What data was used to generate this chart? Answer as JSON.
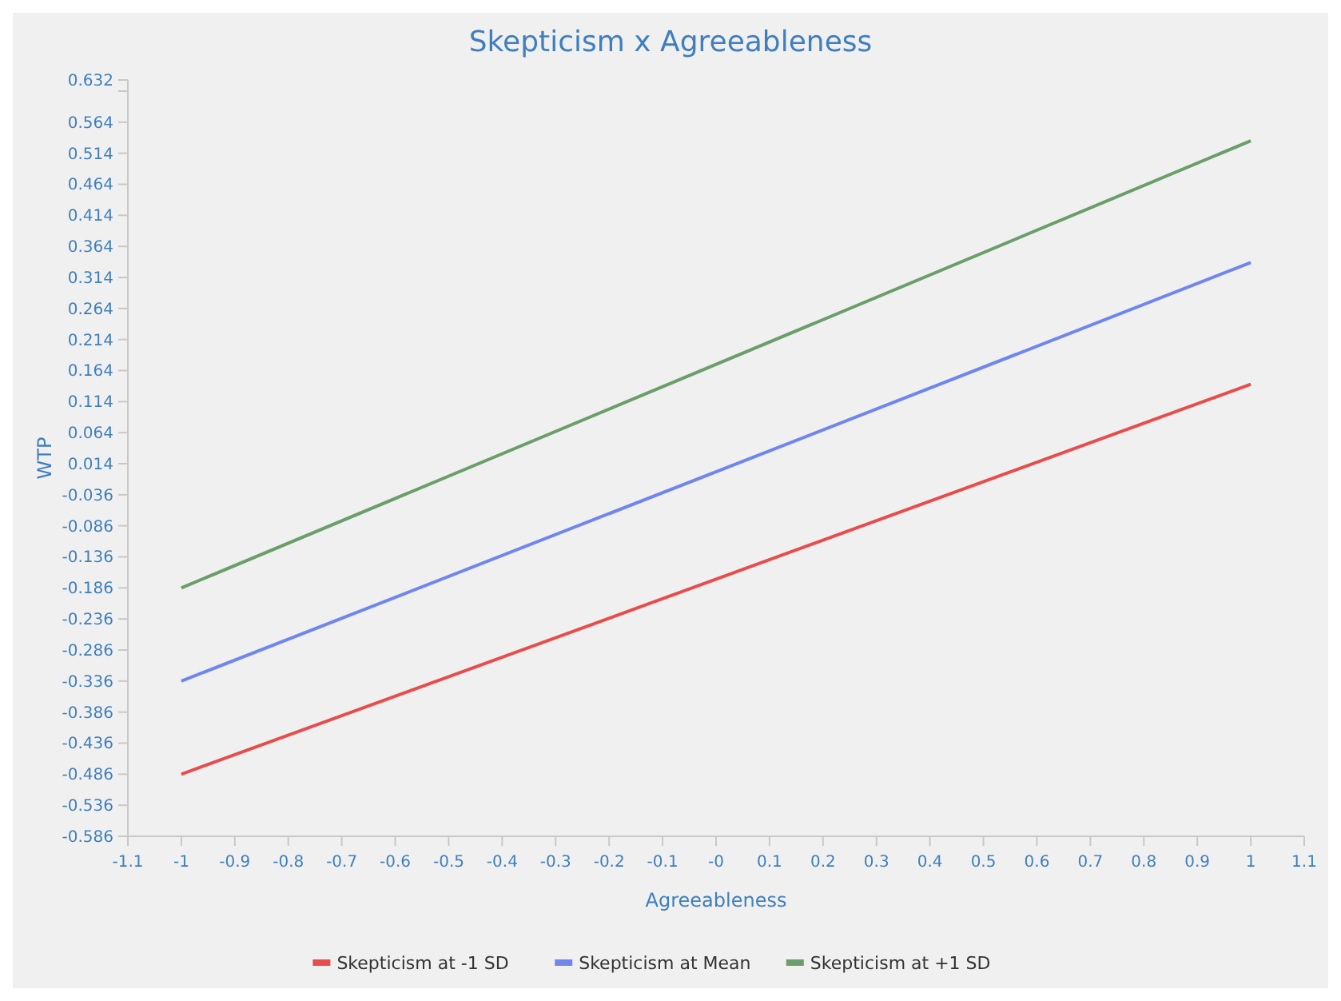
{
  "chart_data": {
    "type": "line",
    "title": "Skepticism x Agreeableness",
    "xlabel": "Agreeableness",
    "ylabel": "WTP",
    "x": [
      -1,
      1
    ],
    "series": [
      {
        "name": "Skepticism at -1 SD",
        "color": "#e84c4c",
        "values": [
          -0.486,
          0.142
        ]
      },
      {
        "name": "Skepticism at Mean",
        "color": "#6f86ee",
        "values": [
          -0.336,
          0.338
        ]
      },
      {
        "name": "Skepticism at +1 SD",
        "color": "#6a9e6a",
        "values": [
          -0.186,
          0.534
        ]
      }
    ],
    "xlim": [
      -1.1,
      1.1
    ],
    "xticks": [
      -1.1,
      -1,
      -0.9,
      -0.8,
      -0.7,
      -0.6,
      -0.5,
      -0.4,
      -0.3,
      -0.2,
      -0.1,
      {
        "value": 0,
        "label": "-0"
      },
      0.1,
      0.2,
      0.3,
      0.4,
      0.5,
      0.6,
      0.7,
      0.8,
      0.9,
      1,
      1.1
    ],
    "ylim": [
      -0.586,
      0.632
    ],
    "yticks": [
      -0.586,
      -0.536,
      -0.486,
      -0.436,
      -0.386,
      -0.336,
      -0.286,
      -0.236,
      -0.186,
      -0.136,
      -0.086,
      -0.036,
      0.014,
      0.064,
      0.114,
      0.164,
      0.214,
      0.264,
      0.314,
      0.364,
      0.414,
      0.464,
      0.514,
      0.564,
      {
        "value": 0.614,
        "label": null
      },
      0.632
    ],
    "grid": false,
    "legend": "bottom",
    "marker": "none",
    "line_style": "solid"
  }
}
